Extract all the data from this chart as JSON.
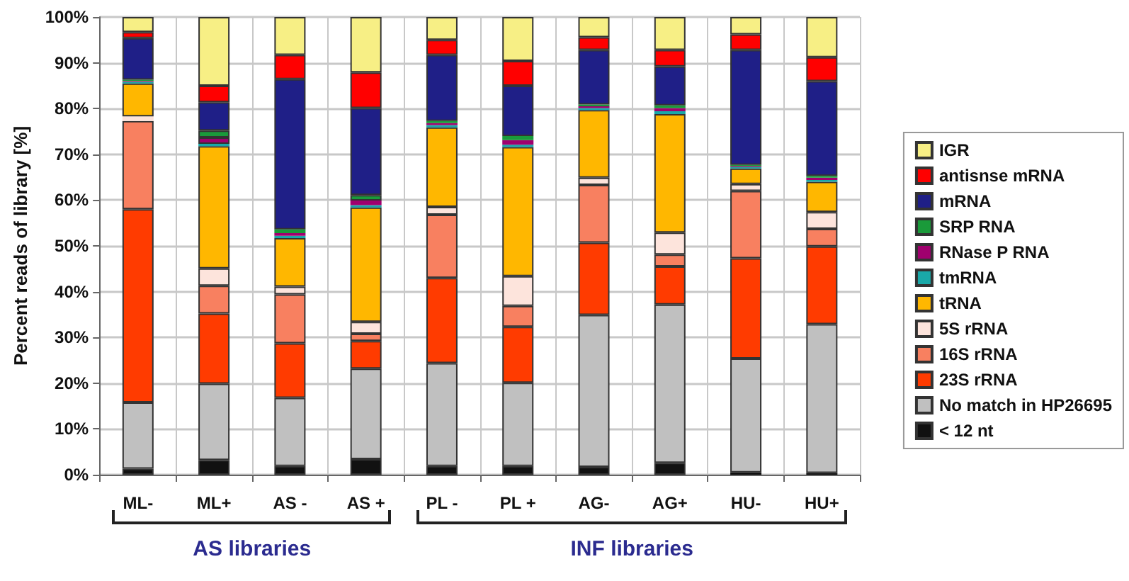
{
  "chart_data": {
    "type": "bar",
    "stacked": true,
    "ylabel": "Percent reads of library [%]",
    "categories": [
      "ML-",
      "ML+",
      "AS -",
      "AS +",
      "PL -",
      "PL +",
      "AG-",
      "AG+",
      "HU-",
      "HU+"
    ],
    "series": [
      {
        "name": "< 12 nt",
        "color": "#111111",
        "values": [
          1.3,
          3.2,
          1.9,
          3.4,
          1.9,
          1.9,
          1.7,
          2.6,
          0.5,
          0.4
        ]
      },
      {
        "name": "No match in HP26695",
        "color": "#c0c0c0",
        "values": [
          14.5,
          16.7,
          14.9,
          19.8,
          22.5,
          18.2,
          33.2,
          34.6,
          24.9,
          32.5
        ]
      },
      {
        "name": "23S rRNA",
        "color": "#ff3b00",
        "values": [
          42.2,
          15.3,
          11.9,
          6.0,
          18.6,
          12.2,
          15.8,
          8.3,
          21.9,
          17.0
        ]
      },
      {
        "name": "16S rRNA",
        "color": "#f88060",
        "values": [
          19.3,
          6.1,
          10.7,
          1.6,
          13.8,
          4.6,
          12.6,
          2.6,
          14.7,
          3.8
        ]
      },
      {
        "name": "5S rRNA",
        "color": "#fde4dc",
        "values": [
          1.0,
          3.8,
          1.7,
          2.6,
          1.7,
          6.5,
          1.6,
          4.8,
          1.5,
          3.7
        ]
      },
      {
        "name": "tRNA",
        "color": "#ffb700",
        "values": [
          7.2,
          26.7,
          10.6,
          25.0,
          17.4,
          28.2,
          14.8,
          25.9,
          3.4,
          6.6
        ]
      },
      {
        "name": "tmRNA",
        "color": "#1aa8a8",
        "values": [
          0.3,
          0.5,
          0.5,
          0.5,
          0.5,
          0.5,
          0.4,
          0.6,
          0.3,
          0.4
        ]
      },
      {
        "name": "RNase P RNA",
        "color": "#a0006e",
        "values": [
          0.2,
          1.4,
          0.6,
          1.0,
          0.4,
          1.0,
          0.4,
          0.7,
          0.2,
          0.5
        ]
      },
      {
        "name": "SRP RNA",
        "color": "#1a9a3a",
        "values": [
          0.3,
          1.5,
          0.8,
          1.2,
          0.5,
          0.9,
          0.4,
          0.6,
          0.3,
          0.4
        ]
      },
      {
        "name": "mRNA",
        "color": "#1f1f87",
        "values": [
          9.1,
          6.2,
          32.8,
          19.0,
          14.4,
          11.0,
          11.9,
          8.5,
          25.1,
          20.7
        ]
      },
      {
        "name": "antisnse mRNA",
        "color": "#ff0000",
        "values": [
          1.3,
          3.6,
          5.3,
          7.8,
          3.3,
          5.4,
          2.8,
          3.6,
          3.4,
          5.2
        ]
      },
      {
        "name": "IGR",
        "color": "#f7ef85",
        "values": [
          3.3,
          15.0,
          8.3,
          12.1,
          5.0,
          9.6,
          4.4,
          7.2,
          3.8,
          8.8
        ]
      }
    ],
    "ylim": [
      0,
      100
    ],
    "yticks": [
      {
        "value": 0,
        "label": "0%"
      },
      {
        "value": 10,
        "label": "10%"
      },
      {
        "value": 20,
        "label": "20%"
      },
      {
        "value": 30,
        "label": "30%"
      },
      {
        "value": 40,
        "label": "40%"
      },
      {
        "value": 50,
        "label": "50%"
      },
      {
        "value": 60,
        "label": "60%"
      },
      {
        "value": 70,
        "label": "70%"
      },
      {
        "value": 80,
        "label": "80%"
      },
      {
        "value": 90,
        "label": "90%"
      },
      {
        "value": 100,
        "label": "100%"
      }
    ],
    "grid": true,
    "legend": "right",
    "annotations": [
      "AS libraries",
      "INF libraries"
    ]
  }
}
